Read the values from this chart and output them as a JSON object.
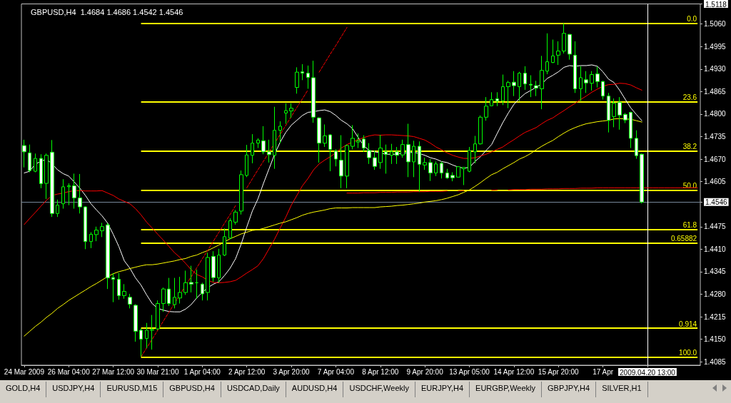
{
  "chart_data": {
    "type": "candlestick",
    "title": "GBPUSD,H4  1.4684 1.4686 1.4542 1.4546",
    "marker": "none",
    "categories": [
      "24 Mar 2009",
      null,
      null,
      null,
      null,
      null,
      null,
      null,
      "26 Mar 04:00",
      null,
      null,
      null,
      null,
      null,
      null,
      null,
      "27 Mar 12:00",
      null,
      null,
      null,
      null,
      null,
      null,
      null,
      "30 Mar 21:00",
      null,
      null,
      null,
      null,
      null,
      null,
      null,
      "1 Apr 04:00",
      null,
      null,
      null,
      null,
      null,
      null,
      null,
      "2 Apr 12:00",
      null,
      null,
      null,
      null,
      null,
      null,
      null,
      "3 Apr 20:00",
      null,
      null,
      null,
      null,
      null,
      null,
      null,
      "7 Apr 04:00",
      null,
      null,
      null,
      null,
      null,
      null,
      null,
      "8 Apr 12:00",
      null,
      null,
      null,
      null,
      null,
      null,
      null,
      "9 Apr 20:00",
      null,
      null,
      null,
      null,
      null,
      null,
      null,
      "13 Apr 05:00",
      null,
      null,
      null,
      null,
      null,
      null,
      null,
      "14 Apr 12:00",
      null,
      null,
      null,
      null,
      null,
      null,
      null,
      "15 Apr 20:00",
      null,
      null,
      null,
      null,
      null,
      null,
      null,
      "17 Apr",
      null,
      null,
      null,
      null,
      null,
      null,
      null,
      "2009.04.20 13:00",
      null,
      null,
      null,
      null,
      null,
      null,
      null,
      null,
      null
    ],
    "ylim": [
      1.4075,
      1.5118
    ],
    "yticks": [
      1.4085,
      {
        "value": 1.415,
        "label": "1.4150"
      },
      1.4215,
      {
        "value": 1.428,
        "label": "1.4280"
      },
      1.4345,
      {
        "value": 1.441,
        "label": "1.4410"
      },
      1.4475,
      {
        "value": 1.4546,
        "label": "1.4546"
      },
      1.4605,
      {
        "value": 1.467,
        "label": "1.4670"
      },
      1.4735,
      {
        "value": 1.48,
        "label": "1.4800"
      },
      1.4865,
      {
        "value": 1.493,
        "label": "1.4930"
      },
      1.4995,
      {
        "value": 1.506,
        "label": "1.5060"
      },
      1.5118
    ],
    "ref_lines": [
      {
        "axis": "y",
        "value": 1.5062,
        "label": null,
        "color": "#ffff00"
      },
      {
        "axis": "y",
        "value": 1.4835,
        "label": null,
        "color": "#ffff00"
      },
      {
        "axis": "y",
        "value": 1.4694,
        "label": null,
        "color": "#ffff00"
      },
      {
        "axis": "y",
        "value": 1.4581,
        "label": null,
        "color": "#ffff00"
      },
      {
        "axis": "y",
        "value": 1.4467,
        "label": null,
        "color": "#ffff00"
      },
      {
        "axis": "y",
        "value": 1.4428,
        "label": null,
        "color": "#ffff00"
      },
      {
        "axis": "y",
        "value": 1.4182,
        "label": null,
        "color": "#ffff00"
      },
      {
        "axis": "y",
        "value": 1.4099,
        "label": null,
        "color": "#ffff00"
      },
      {
        "axis": "y",
        "value": 1.4546,
        "label": null,
        "color": "#778899"
      },
      {
        "axis": "x",
        "value": "2009.04.20 13:00",
        "label": null,
        "color": "#ffffff"
      }
    ],
    "annotations": [
      {
        "text": "0.0",
        "y": 1.5062
      },
      {
        "text": "23.6",
        "y": 1.4835
      },
      {
        "text": "38.2",
        "y": 1.4694
      },
      {
        "text": "50.0",
        "y": 1.4581
      },
      {
        "text": "61.8",
        "y": 1.4467
      },
      {
        "text": "0.65882",
        "y": 1.4428
      },
      {
        "text": "0.914",
        "y": 1.4182
      },
      {
        "text": "100.0",
        "y": 1.4099
      },
      "GOLD,H4",
      "USDJPY,H4",
      "EURUSD,M15",
      "GBPUSD,H4",
      "USDCAD,Daily",
      "AUDUSD,H4",
      "USDCHF,Weekly",
      "EURJPY,H4",
      "EURGBP,Weekly",
      "GBPJPY,H4",
      "SILVER,H1"
    ],
    "series": [
      {
        "type": "line",
        "color": "#ffffff",
        "values": [
          1.463,
          1.4635,
          1.4656,
          1.4663,
          1.467,
          1.4656,
          1.4639,
          1.4628,
          1.4621,
          1.4604,
          1.4586,
          1.4565,
          1.4541,
          1.4523,
          1.4506,
          1.4485,
          1.4453,
          1.4418,
          1.4376,
          1.4355,
          1.4327,
          1.4306,
          1.4278,
          1.4253,
          1.4239,
          1.4234,
          1.423,
          1.4229,
          1.4229,
          1.4237,
          1.425,
          1.4269,
          1.4285,
          1.4299,
          1.4309,
          1.4316,
          1.4334,
          1.4355,
          1.4383,
          1.4425,
          1.4474,
          1.452,
          1.4555,
          1.46,
          1.4642,
          1.4684,
          1.4719,
          1.4747,
          1.4768,
          1.4782,
          1.4796,
          1.4805,
          1.4807,
          1.481,
          1.4812,
          1.4807,
          1.4796,
          1.4782,
          1.4772,
          1.4758,
          1.4733,
          1.4709,
          1.4695,
          1.4691,
          1.4688,
          1.4684,
          1.4684,
          1.4684,
          1.4688,
          1.4688,
          1.469,
          1.4686,
          1.4681,
          1.4674,
          1.467,
          1.4663,
          1.466,
          1.4653,
          1.4647,
          1.4644,
          1.4646,
          1.4663,
          1.4677,
          1.4695,
          1.4712,
          1.4744,
          1.4775,
          1.4803,
          1.4828,
          1.4845,
          1.4859,
          1.4868,
          1.4877,
          1.4887,
          1.4903,
          1.4912,
          1.4922,
          1.4935,
          1.494,
          1.4938,
          1.494,
          1.494,
          1.4942,
          1.4938,
          1.4922,
          1.4901,
          1.4891,
          1.4869,
          1.4843,
          1.4818,
          1.4799,
          1.4781,
          null,
          null,
          null,
          null,
          null,
          null,
          null,
          null,
          null,
          null
        ]
      },
      {
        "type": "line",
        "color": "#ff0000",
        "values": [
          1.4481,
          1.4499,
          1.4516,
          1.4534,
          1.4551,
          1.4565,
          1.4569,
          1.4572,
          1.4576,
          1.4579,
          1.4579,
          1.4578,
          1.4578,
          1.4578,
          1.4579,
          1.4572,
          1.4565,
          1.4555,
          1.4548,
          1.4541,
          1.4527,
          1.4509,
          1.4488,
          1.4471,
          1.4453,
          1.4436,
          1.4418,
          1.44,
          1.4386,
          1.4369,
          1.4351,
          1.4337,
          1.433,
          1.432,
          1.4314,
          1.4313,
          1.4314,
          1.4316,
          1.432,
          1.433,
          1.4341,
          1.4351,
          1.4362,
          1.4383,
          1.4411,
          1.4439,
          1.4471,
          1.4502,
          1.4537,
          1.4565,
          1.4593,
          1.4614,
          1.4639,
          1.4656,
          1.4667,
          1.4677,
          1.4688,
          1.4702,
          1.4712,
          1.4719,
          1.4726,
          1.4732,
          1.4737,
          1.474,
          1.4739,
          1.474,
          1.474,
          1.4739,
          1.4738,
          1.4737,
          1.4735,
          1.473,
          1.4725,
          1.4716,
          1.4705,
          1.4697,
          1.4688,
          1.4681,
          1.4676,
          1.4672,
          1.4672,
          1.4674,
          1.4679,
          1.4684,
          1.4691,
          1.4698,
          1.4705,
          1.4716,
          1.4726,
          1.4737,
          1.4747,
          1.4754,
          1.4761,
          1.4772,
          1.4782,
          1.4789,
          1.48,
          1.481,
          1.4821,
          1.4831,
          1.4842,
          1.4852,
          1.4863,
          1.4872,
          1.488,
          1.4885,
          1.4886,
          1.4889,
          1.4888,
          1.4884,
          1.4876,
          1.4869,
          null,
          null,
          null,
          null,
          null,
          null,
          null,
          null,
          null,
          null
        ]
      },
      {
        "type": "line",
        "color": "#ffff00",
        "values": [
          1.4159,
          1.4173,
          1.4187,
          1.4199,
          1.4213,
          1.4225,
          1.4239,
          1.425,
          1.4262,
          1.4272,
          1.4282,
          1.4292,
          1.4302,
          1.4311,
          1.4321,
          1.4331,
          1.4339,
          1.4345,
          1.4349,
          1.4354,
          1.4358,
          1.4362,
          1.4365,
          1.4365,
          1.4367,
          1.437,
          1.4373,
          1.4376,
          1.438,
          1.4383,
          1.4389,
          1.4393,
          1.44,
          1.4406,
          1.4414,
          1.4422,
          1.4431,
          1.444,
          1.4447,
          1.4454,
          1.4459,
          1.4464,
          1.4466,
          1.447,
          1.4475,
          1.448,
          1.4485,
          1.4489,
          1.4495,
          1.4501,
          1.4508,
          1.4513,
          1.4517,
          1.452,
          1.4523,
          1.4527,
          1.4529,
          1.4529,
          1.4529,
          1.453,
          1.453,
          1.453,
          1.453,
          1.453,
          1.4532,
          1.4533,
          1.4534,
          1.4536,
          1.4537,
          1.4539,
          1.4541,
          1.4543,
          1.4546,
          1.4548,
          1.455,
          1.4553,
          1.4557,
          1.4562,
          1.4567,
          1.4574,
          1.4581,
          1.4591,
          1.4602,
          1.4614,
          1.4625,
          1.4632,
          1.4642,
          1.4651,
          1.466,
          1.467,
          1.4677,
          1.4686,
          1.4697,
          1.4707,
          1.4716,
          1.4724,
          1.4735,
          1.4745,
          1.4754,
          1.4761,
          1.4767,
          1.4772,
          1.4775,
          1.4778,
          1.478,
          1.4782,
          1.4786,
          1.4787,
          1.4786,
          1.4785,
          1.4781,
          1.4777,
          null,
          null,
          null,
          null,
          null,
          null,
          null,
          null,
          null,
          null
        ]
      },
      {
        "type": "line",
        "color": "#ff0000",
        "line_style": "dashed",
        "values": [
          null,
          null,
          null,
          null,
          null,
          null,
          null,
          null,
          null,
          null,
          null,
          null,
          null,
          null,
          null,
          null,
          null,
          null,
          null,
          null,
          null,
          1.4099,
          1.4125,
          1.415,
          1.4176,
          1.4202,
          1.4228,
          1.4253,
          1.4279,
          1.4305,
          1.433,
          1.4356,
          1.4382,
          1.4407,
          1.4433,
          1.4459,
          1.4485,
          1.451,
          1.4536,
          null,
          1.4587,
          1.4613,
          1.4639,
          1.4664,
          1.469,
          1.4716,
          1.4741,
          1.4767,
          1.4793,
          1.4819,
          1.4844,
          1.487,
          null,
          1.4921,
          1.4947,
          1.4973,
          1.4998,
          1.5024,
          1.505,
          null,
          null,
          null,
          null,
          null,
          null,
          null,
          null,
          null,
          null,
          null,
          null,
          null,
          null,
          null,
          null,
          null,
          null,
          null,
          null,
          null,
          null,
          null,
          null,
          null,
          null,
          null,
          null,
          null,
          null,
          null,
          null,
          null,
          null,
          null,
          null,
          null,
          null,
          null,
          null,
          null,
          null,
          null,
          null,
          null,
          null,
          null,
          null,
          null,
          null,
          null,
          null,
          null,
          null,
          null,
          null,
          null,
          null,
          null,
          null,
          null,
          null,
          null
        ]
      },
      {
        "type": "line",
        "color": "#ff0000",
        "values": [
          null,
          null,
          null,
          null,
          null,
          null,
          null,
          null,
          null,
          null,
          null,
          null,
          null,
          null,
          null,
          null,
          null,
          null,
          null,
          null,
          null,
          null,
          null,
          null,
          null,
          null,
          null,
          null,
          null,
          null,
          null,
          null,
          null,
          null,
          null,
          null,
          null,
          null,
          null,
          null,
          null,
          null,
          null,
          null,
          null,
          null,
          null,
          null,
          null,
          null,
          null,
          null,
          null,
          null,
          null,
          null,
          null,
          null,
          1.4572,
          1.4572,
          1.4572,
          1.4573,
          1.4573,
          1.4573,
          1.4574,
          1.4574,
          1.4574,
          1.4575,
          1.4575,
          1.4575,
          1.4576,
          1.4576,
          1.4576,
          1.4577,
          1.4577,
          1.4577,
          1.4578,
          null,
          1.4578,
          1.4579,
          null,
          null,
          null,
          null,
          1.458,
          1.4581,
          null,
          1.4581,
          1.4582,
          1.4582,
          1.4582,
          1.4583,
          1.4583,
          1.4583,
          1.4584,
          1.4584,
          1.4584,
          1.4585,
          1.4585,
          1.4585,
          1.4586,
          1.4586,
          1.4586,
          1.4587,
          1.4587,
          1.4587,
          1.4587,
          1.4587,
          1.4587,
          1.4587,
          1.4587,
          1.4587,
          1.4587,
          1.4587,
          1.4587,
          1.4587,
          1.4587,
          1.4587,
          1.4587,
          1.4587,
          1.4587,
          1.4587
        ]
      },
      {
        "color": "#00ff00",
        "ohlc": [
          [
            1.4709,
            1.4726,
            1.4646,
            1.4691
          ],
          [
            1.4688,
            1.4712,
            1.4632,
            1.4637
          ],
          [
            1.4635,
            1.4686,
            1.4632,
            1.4672
          ],
          [
            1.4672,
            1.4684,
            1.4586,
            1.4599
          ],
          [
            1.46,
            1.4686,
            1.4555,
            1.4681
          ],
          [
            1.469,
            1.4725,
            1.4503,
            1.4513
          ],
          [
            1.4513,
            1.4553,
            1.4503,
            1.4537
          ],
          [
            1.4541,
            1.4612,
            1.4527,
            1.459
          ],
          [
            1.459,
            1.46,
            1.4537,
            1.4593
          ],
          [
            1.4593,
            1.4628,
            1.4527,
            1.4558
          ],
          [
            1.4558,
            1.4627,
            1.4513,
            1.4532
          ],
          [
            1.4532,
            1.4534,
            1.441,
            1.4432
          ],
          [
            1.4432,
            1.4459,
            1.4413,
            1.4453
          ],
          [
            1.4452,
            1.4475,
            1.4433,
            1.4465
          ],
          [
            1.4463,
            1.4486,
            1.4445,
            1.4475
          ],
          [
            1.448,
            1.4485,
            1.4295,
            1.4327
          ],
          [
            1.4328,
            1.4341,
            1.4257,
            1.4323
          ],
          [
            1.4323,
            1.4341,
            1.4264,
            1.4276
          ],
          [
            1.4276,
            1.4309,
            1.4267,
            1.4288
          ],
          [
            1.4271,
            1.4281,
            1.4239,
            1.4251
          ],
          [
            1.4248,
            1.4251,
            1.4143,
            1.4173
          ],
          [
            1.4176,
            1.4181,
            1.4099,
            1.415
          ],
          [
            1.4152,
            1.4197,
            1.4124,
            1.4176
          ],
          [
            1.4176,
            1.422,
            1.412,
            1.4178
          ],
          [
            1.418,
            1.4262,
            1.4176,
            1.4253
          ],
          [
            1.4253,
            1.4299,
            1.4229,
            1.4295
          ],
          [
            1.4295,
            1.4327,
            1.4246,
            1.4253
          ],
          [
            1.425,
            1.4327,
            1.4239,
            1.4271
          ],
          [
            1.4269,
            1.433,
            1.4253,
            1.4285
          ],
          [
            1.4285,
            1.4348,
            1.4278,
            1.4313
          ],
          [
            1.4314,
            1.4362,
            1.4285,
            1.4309
          ],
          [
            1.4313,
            1.4351,
            1.4267,
            1.4313
          ],
          [
            1.4309,
            1.4313,
            1.4262,
            1.4281
          ],
          [
            1.4285,
            1.44,
            1.4262,
            1.4386
          ],
          [
            1.4389,
            1.4404,
            1.4316,
            1.4328
          ],
          [
            1.4327,
            1.4411,
            1.4313,
            1.4393
          ],
          [
            1.4393,
            1.447,
            1.439,
            1.4446
          ],
          [
            1.4442,
            1.4499,
            1.4439,
            1.4492
          ],
          [
            1.4488,
            1.4523,
            1.4481,
            1.4517
          ],
          [
            1.452,
            1.4637,
            1.451,
            1.4625
          ],
          [
            1.4623,
            1.4711,
            1.4618,
            1.4682
          ],
          [
            1.4681,
            1.4742,
            1.4658,
            1.4716
          ],
          [
            1.4716,
            1.473,
            1.4702,
            1.4725
          ],
          [
            1.4723,
            1.4765,
            1.4684,
            1.4691
          ],
          [
            1.4691,
            1.4726,
            1.466,
            1.4683
          ],
          [
            1.4681,
            1.4821,
            1.4642,
            1.4753
          ],
          [
            1.4753,
            1.4779,
            1.4716,
            1.4765
          ],
          [
            1.4803,
            1.4831,
            1.4772,
            1.481
          ],
          [
            1.4809,
            1.4831,
            1.4789,
            1.4817
          ],
          [
            1.4877,
            1.4935,
            1.4859,
            1.4921
          ],
          [
            1.4922,
            1.4944,
            1.4898,
            1.4918
          ],
          [
            1.4918,
            1.494,
            1.4873,
            1.4906
          ],
          [
            1.4905,
            1.4954,
            1.4775,
            1.4791
          ],
          [
            1.4789,
            1.4791,
            1.466,
            1.4716
          ],
          [
            1.4716,
            1.477,
            1.4705,
            1.4737
          ],
          [
            1.474,
            1.4742,
            1.4635,
            1.4698
          ],
          [
            1.4693,
            1.4698,
            1.4649,
            1.467
          ],
          [
            1.4667,
            1.4739,
            1.4586,
            1.4621
          ],
          [
            1.4621,
            1.4712,
            1.4586,
            1.4709
          ],
          [
            1.4707,
            1.4768,
            1.4698,
            1.473
          ],
          [
            1.4719,
            1.4744,
            1.4702,
            1.4723
          ],
          [
            1.4728,
            1.4739,
            1.4691,
            1.4702
          ],
          [
            1.4695,
            1.4716,
            1.4656,
            1.4674
          ],
          [
            1.4674,
            1.4695,
            1.4639,
            1.4649
          ],
          [
            1.466,
            1.474,
            1.4642,
            1.4702
          ],
          [
            1.4691,
            1.4712,
            1.4628,
            1.4684
          ],
          [
            1.4681,
            1.4714,
            1.4656,
            1.4691
          ],
          [
            1.4691,
            1.4705,
            1.4656,
            1.4681
          ],
          [
            1.4682,
            1.4726,
            1.4674,
            1.4712
          ],
          [
            1.4712,
            1.4772,
            1.4618,
            1.4662
          ],
          [
            1.4662,
            1.4723,
            1.4618,
            1.4707
          ],
          [
            1.4707,
            1.4721,
            1.4576,
            1.4655
          ],
          [
            1.4653,
            1.4674,
            1.4639,
            1.466
          ],
          [
            1.466,
            1.467,
            1.4607,
            1.463
          ],
          [
            1.463,
            1.4663,
            1.4621,
            1.4656
          ],
          [
            1.4658,
            1.4663,
            1.4614,
            1.463
          ],
          [
            1.463,
            1.4642,
            1.4613,
            1.4616
          ],
          [
            1.4623,
            1.4632,
            1.4606,
            1.4616
          ],
          [
            1.4618,
            1.4649,
            1.4618,
            1.4648
          ],
          [
            1.4642,
            1.4646,
            1.4595,
            1.4646
          ],
          [
            1.4635,
            1.4705,
            1.4632,
            1.4695
          ],
          [
            1.4691,
            1.4737,
            1.4658,
            1.4714
          ],
          [
            1.4714,
            1.4796,
            1.4712,
            1.4791
          ],
          [
            1.4791,
            1.4849,
            1.4781,
            1.4823
          ],
          [
            1.4824,
            1.4863,
            1.4823,
            1.4842
          ],
          [
            1.4844,
            1.4863,
            1.4823,
            1.4838
          ],
          [
            1.4838,
            1.4914,
            1.4826,
            1.4879
          ],
          [
            1.4879,
            1.4896,
            1.4817,
            1.4891
          ],
          [
            1.4892,
            1.4924,
            1.4852,
            1.4882
          ],
          [
            1.4879,
            1.4922,
            1.4838,
            1.4918
          ],
          [
            1.4918,
            1.4938,
            1.487,
            1.4887
          ],
          [
            1.4886,
            1.4912,
            1.4849,
            1.4884
          ],
          [
            1.4882,
            1.4896,
            1.4852,
            1.4875
          ],
          [
            1.4873,
            1.4968,
            1.4814,
            1.4926
          ],
          [
            1.4924,
            1.5033,
            1.4915,
            1.4951
          ],
          [
            1.4949,
            1.5015,
            1.4947,
            1.4968
          ],
          [
            1.497,
            1.501,
            1.4942,
            1.4982
          ],
          [
            1.4982,
            1.5062,
            1.4975,
            1.5033
          ],
          [
            1.503,
            1.5031,
            1.4957,
            1.4973
          ],
          [
            1.497,
            1.501,
            1.4861,
            1.4873
          ],
          [
            1.4873,
            1.4938,
            1.4838,
            1.4905
          ],
          [
            1.4899,
            1.4924,
            1.4861,
            1.489
          ],
          [
            1.4889,
            1.4924,
            1.4868,
            1.4914
          ],
          [
            1.4916,
            1.4937,
            1.4877,
            1.4894
          ],
          [
            1.4894,
            1.4896,
            1.4842,
            1.4852
          ],
          [
            1.4852,
            1.4861,
            1.4747,
            1.4782
          ],
          [
            1.4793,
            1.4845,
            1.4762,
            1.4831
          ],
          [
            1.4834,
            1.4849,
            1.4755,
            1.4797
          ],
          [
            1.4799,
            1.4803,
            1.4774,
            1.4783
          ],
          [
            1.4805,
            1.4807,
            1.4702,
            1.473
          ],
          [
            1.473,
            1.4753,
            1.4671,
            1.468
          ],
          [
            1.4684,
            1.4686,
            1.4542,
            1.4546
          ],
          null,
          null,
          null,
          null,
          null,
          null,
          null,
          null,
          null,
          null
        ]
      }
    ]
  }
}
